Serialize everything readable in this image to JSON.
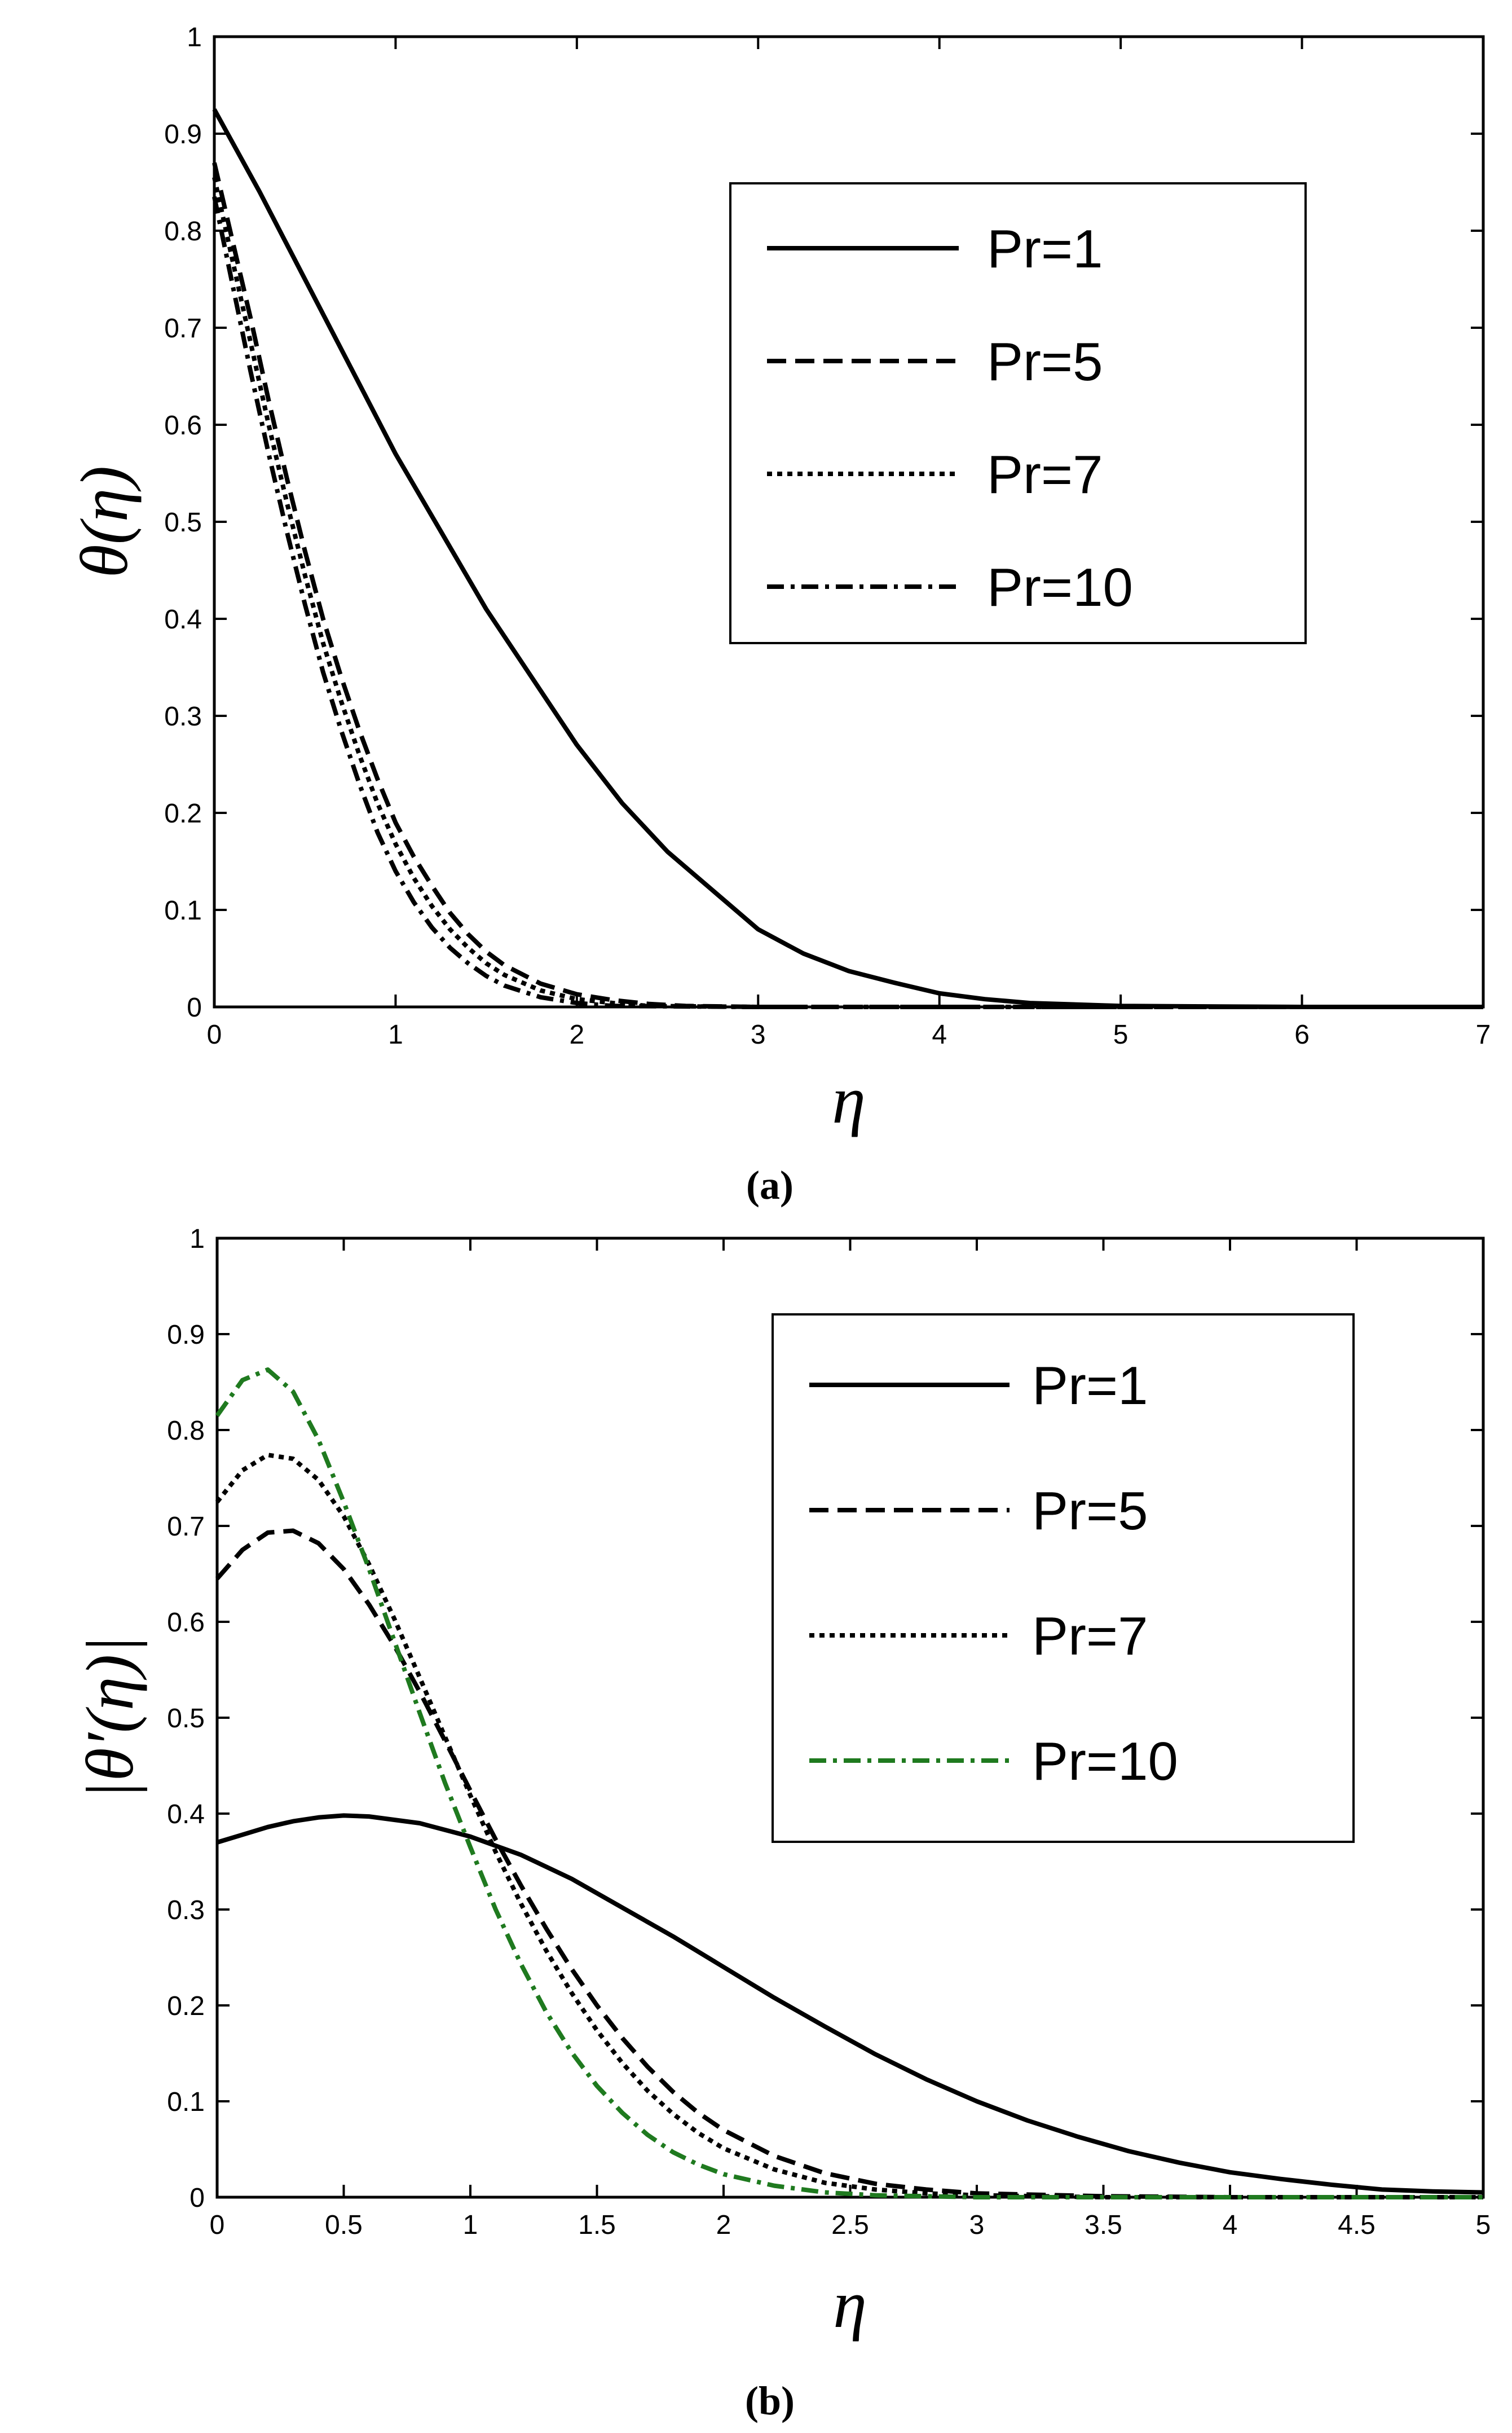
{
  "chart_data": [
    {
      "type": "line",
      "panel_label": "(a)",
      "panel_label_parts": {
        "open": "(",
        "letter": "a",
        "close": ")"
      },
      "xlabel": "η",
      "ylabel": "θ(η)",
      "xlim": [
        0,
        7
      ],
      "ylim": [
        0,
        1
      ],
      "xticks": [
        "0",
        "1",
        "2",
        "3",
        "4",
        "5",
        "6",
        "7"
      ],
      "yticks": [
        "0",
        "0.1",
        "0.2",
        "0.3",
        "0.4",
        "0.5",
        "0.6",
        "0.7",
        "0.8",
        "0.9",
        "1"
      ],
      "legend_position": "top-right",
      "series": [
        {
          "name": "Pr=1",
          "style": "solid",
          "color": "#000000",
          "x": [
            0,
            0.25,
            0.5,
            0.75,
            1,
            1.25,
            1.5,
            1.75,
            2,
            2.25,
            2.5,
            2.75,
            3,
            3.25,
            3.5,
            3.75,
            4,
            4.25,
            4.5,
            5,
            6,
            7
          ],
          "y": [
            0.925,
            0.84,
            0.75,
            0.66,
            0.57,
            0.49,
            0.41,
            0.34,
            0.27,
            0.21,
            0.16,
            0.12,
            0.08,
            0.055,
            0.037,
            0.025,
            0.014,
            0.008,
            0.004,
            0.001,
            0,
            0
          ]
        },
        {
          "name": "Pr=5",
          "style": "dashed",
          "color": "#000000",
          "x": [
            0,
            0.1,
            0.2,
            0.3,
            0.4,
            0.5,
            0.6,
            0.7,
            0.8,
            0.9,
            1.0,
            1.1,
            1.2,
            1.3,
            1.4,
            1.5,
            1.6,
            1.8,
            2.0,
            2.2,
            2.4,
            2.6,
            3.0,
            4,
            5,
            6,
            7
          ],
          "y": [
            0.87,
            0.79,
            0.71,
            0.625,
            0.545,
            0.47,
            0.4,
            0.34,
            0.285,
            0.235,
            0.19,
            0.155,
            0.125,
            0.097,
            0.075,
            0.057,
            0.043,
            0.024,
            0.013,
            0.007,
            0.003,
            0.001,
            0,
            0,
            0,
            0,
            0
          ]
        },
        {
          "name": "Pr=7",
          "style": "dotted",
          "color": "#000000",
          "x": [
            0,
            0.1,
            0.2,
            0.3,
            0.4,
            0.5,
            0.6,
            0.7,
            0.8,
            0.9,
            1.0,
            1.1,
            1.2,
            1.3,
            1.4,
            1.5,
            1.6,
            1.8,
            2.0,
            2.2,
            2.4,
            3.0,
            4,
            5,
            6,
            7
          ],
          "y": [
            0.855,
            0.77,
            0.685,
            0.6,
            0.52,
            0.445,
            0.375,
            0.315,
            0.26,
            0.21,
            0.168,
            0.133,
            0.104,
            0.08,
            0.061,
            0.045,
            0.033,
            0.017,
            0.008,
            0.004,
            0.001,
            0,
            0,
            0,
            0,
            0
          ]
        },
        {
          "name": "Pr=10",
          "style": "dashdot",
          "color": "#000000",
          "x": [
            0,
            0.1,
            0.2,
            0.3,
            0.4,
            0.5,
            0.6,
            0.7,
            0.8,
            0.9,
            1.0,
            1.1,
            1.2,
            1.3,
            1.4,
            1.5,
            1.6,
            1.8,
            2.0,
            2.2,
            3.0,
            4,
            5,
            6,
            7
          ],
          "y": [
            0.835,
            0.745,
            0.655,
            0.57,
            0.49,
            0.415,
            0.345,
            0.285,
            0.23,
            0.18,
            0.14,
            0.108,
            0.082,
            0.061,
            0.045,
            0.032,
            0.022,
            0.01,
            0.004,
            0.001,
            0,
            0,
            0,
            0,
            0
          ]
        }
      ]
    },
    {
      "type": "line",
      "panel_label": "(b)",
      "panel_label_parts": {
        "open": "(",
        "letter": "b",
        "close": ")"
      },
      "xlabel": "η",
      "ylabel": "|θ′(η)|",
      "xlim": [
        0,
        5
      ],
      "ylim": [
        0,
        1
      ],
      "xticks": [
        "0",
        "0.5",
        "1",
        "1.5",
        "2",
        "2.5",
        "3",
        "3.5",
        "4",
        "4.5",
        "5"
      ],
      "yticks": [
        "0",
        "0.1",
        "0.2",
        "0.3",
        "0.4",
        "0.5",
        "0.6",
        "0.7",
        "0.8",
        "0.9",
        "1"
      ],
      "legend_position": "top-right",
      "series": [
        {
          "name": "Pr=1",
          "style": "solid",
          "color": "#000000",
          "x": [
            0,
            0.1,
            0.2,
            0.3,
            0.4,
            0.5,
            0.6,
            0.8,
            1.0,
            1.2,
            1.4,
            1.6,
            1.8,
            2.0,
            2.2,
            2.4,
            2.6,
            2.8,
            3.0,
            3.2,
            3.4,
            3.6,
            3.8,
            4.0,
            4.2,
            4.4,
            4.6,
            4.8,
            5.0
          ],
          "y": [
            0.37,
            0.378,
            0.386,
            0.392,
            0.396,
            0.398,
            0.397,
            0.39,
            0.376,
            0.357,
            0.332,
            0.302,
            0.272,
            0.24,
            0.208,
            0.178,
            0.149,
            0.123,
            0.1,
            0.08,
            0.063,
            0.048,
            0.036,
            0.026,
            0.019,
            0.013,
            0.008,
            0.006,
            0.005
          ]
        },
        {
          "name": "Pr=5",
          "style": "dashed",
          "color": "#000000",
          "x": [
            0,
            0.1,
            0.2,
            0.3,
            0.4,
            0.5,
            0.6,
            0.7,
            0.8,
            0.9,
            1.0,
            1.1,
            1.2,
            1.3,
            1.4,
            1.5,
            1.6,
            1.7,
            1.8,
            1.9,
            2.0,
            2.2,
            2.4,
            2.6,
            2.8,
            3.0,
            3.5,
            4.0,
            4.5,
            5.0
          ],
          "y": [
            0.645,
            0.675,
            0.693,
            0.695,
            0.682,
            0.655,
            0.618,
            0.575,
            0.527,
            0.476,
            0.424,
            0.373,
            0.325,
            0.28,
            0.238,
            0.2,
            0.166,
            0.136,
            0.11,
            0.088,
            0.07,
            0.043,
            0.025,
            0.014,
            0.008,
            0.004,
            0.001,
            0,
            0,
            0
          ]
        },
        {
          "name": "Pr=7",
          "style": "dotted",
          "color": "#000000",
          "x": [
            0,
            0.1,
            0.2,
            0.3,
            0.4,
            0.5,
            0.6,
            0.7,
            0.8,
            0.9,
            1.0,
            1.1,
            1.2,
            1.3,
            1.4,
            1.5,
            1.6,
            1.7,
            1.8,
            1.9,
            2.0,
            2.2,
            2.4,
            2.6,
            2.8,
            3.0,
            3.5,
            4.0,
            4.5,
            5.0
          ],
          "y": [
            0.725,
            0.758,
            0.774,
            0.77,
            0.748,
            0.71,
            0.66,
            0.603,
            0.542,
            0.48,
            0.419,
            0.36,
            0.306,
            0.257,
            0.213,
            0.174,
            0.14,
            0.111,
            0.087,
            0.067,
            0.051,
            0.029,
            0.015,
            0.008,
            0.004,
            0.002,
            0,
            0,
            0,
            0
          ]
        },
        {
          "name": "Pr=10",
          "style": "dashdot",
          "color": "#1f7a1f",
          "x": [
            0,
            0.1,
            0.2,
            0.3,
            0.4,
            0.5,
            0.6,
            0.7,
            0.8,
            0.9,
            1.0,
            1.1,
            1.2,
            1.3,
            1.4,
            1.5,
            1.6,
            1.7,
            1.8,
            1.9,
            2.0,
            2.2,
            2.4,
            2.6,
            2.8,
            3.0,
            3.5,
            4.0,
            4.5,
            5.0
          ],
          "y": [
            0.815,
            0.852,
            0.863,
            0.84,
            0.79,
            0.725,
            0.655,
            0.58,
            0.505,
            0.432,
            0.365,
            0.3,
            0.243,
            0.193,
            0.151,
            0.116,
            0.088,
            0.065,
            0.047,
            0.034,
            0.024,
            0.012,
            0.005,
            0.002,
            0.001,
            0,
            0,
            0,
            0,
            0
          ]
        }
      ]
    }
  ]
}
